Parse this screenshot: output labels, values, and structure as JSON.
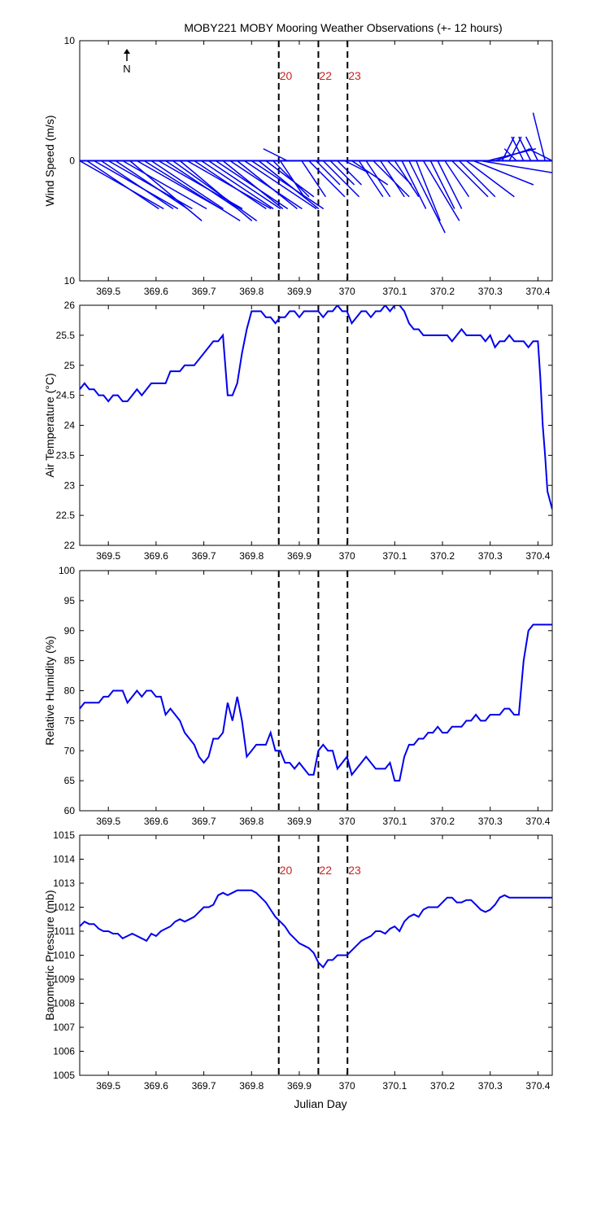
{
  "title": "MOBY221 MOBY Mooring Weather Observations (+- 12 hours)",
  "xlabel": "Julian Day",
  "x_ticks": [
    "369.5",
    "369.6",
    "369.7",
    "369.8",
    "369.9",
    "370",
    "370.1",
    "370.2",
    "370.3",
    "370.4"
  ],
  "xlim": [
    369.44,
    370.43
  ],
  "events": [
    {
      "label": "20",
      "x": 369.857
    },
    {
      "label": "22",
      "x": 369.94
    },
    {
      "label": "23",
      "x": 370.001
    }
  ],
  "north_label": "N",
  "colors": {
    "series": "#0000ee",
    "marker": "#cc2222",
    "axis": "#000000"
  },
  "chart_data": [
    {
      "type": "line",
      "subtype": "wind-vector (stick plot)",
      "ylabel": "Wind Speed (m/s)",
      "ylim": [
        -10,
        10
      ],
      "y_ticks": [
        "10",
        "0",
        "10"
      ],
      "show_event_labels": true,
      "series": [
        {
          "x": [
            369.44,
            369.455,
            369.47,
            369.485,
            369.5,
            369.515,
            369.53,
            369.545,
            369.56,
            369.575,
            369.59,
            369.605,
            369.62,
            369.635,
            369.65,
            369.665,
            369.68,
            369.695,
            369.71,
            369.725,
            369.74,
            369.755,
            369.77,
            369.785,
            369.8,
            369.815,
            369.83,
            369.845,
            369.86,
            369.875,
            369.89,
            369.905,
            369.92,
            369.935,
            369.95,
            369.965,
            369.98,
            369.995,
            370.01,
            370.025,
            370.04,
            370.055,
            370.07,
            370.085,
            370.1,
            370.115,
            370.13,
            370.145,
            370.16,
            370.175,
            370.19,
            370.205,
            370.22,
            370.235,
            370.25,
            370.265,
            370.28,
            370.295,
            370.31,
            370.325,
            370.34,
            370.355,
            370.37,
            370.385,
            370.4,
            370.415,
            370.43
          ],
          "u": [
            7,
            6,
            7,
            6,
            7,
            6,
            7,
            6,
            7,
            8,
            6,
            7,
            6,
            7,
            6,
            7,
            6,
            6,
            6,
            6,
            5,
            6,
            5,
            6,
            6,
            5,
            4,
            3,
            2,
            -2,
            -3,
            2,
            3,
            2,
            3,
            2,
            2,
            2,
            3,
            2,
            2,
            3,
            2,
            2,
            2,
            2,
            3,
            2,
            3,
            2,
            2,
            2,
            3,
            3,
            4,
            5,
            6,
            4,
            3,
            1,
            1,
            -1,
            -1,
            -1,
            -1,
            -1,
            -2
          ],
          "v": [
            -4,
            -4,
            -4,
            -4,
            -4,
            -4,
            -4,
            -5,
            -4,
            -5,
            -4,
            -4,
            -4,
            -5,
            -5,
            -4,
            -4,
            -4,
            -4,
            -4,
            -4,
            -4,
            -4,
            -4,
            -4,
            -4,
            -3,
            -3,
            -3,
            1,
            0,
            -3,
            -3,
            -2,
            -3,
            -2,
            -2,
            -1,
            -2,
            -3,
            -3,
            -3,
            -3,
            -2,
            -3,
            -4,
            -6,
            -5,
            -5,
            -4,
            -4,
            -3,
            -3,
            -3,
            -3,
            -2,
            -1,
            1,
            1,
            2,
            2,
            1,
            2,
            2,
            2,
            4,
            1
          ]
        }
      ]
    },
    {
      "type": "line",
      "ylabel": "Air Temperature (°C)",
      "ylim": [
        22,
        26
      ],
      "y_ticks": [
        "22",
        "22.5",
        "23",
        "23.5",
        "24",
        "24.5",
        "25",
        "25.5",
        "26"
      ],
      "series": [
        {
          "x": [
            369.44,
            369.45,
            369.46,
            369.47,
            369.48,
            369.49,
            369.5,
            369.51,
            369.52,
            369.53,
            369.54,
            369.55,
            369.56,
            369.57,
            369.58,
            369.59,
            369.6,
            369.61,
            369.62,
            369.63,
            369.64,
            369.65,
            369.66,
            369.67,
            369.68,
            369.69,
            369.7,
            369.71,
            369.72,
            369.73,
            369.74,
            369.75,
            369.76,
            369.77,
            369.78,
            369.79,
            369.8,
            369.81,
            369.82,
            369.83,
            369.84,
            369.85,
            369.86,
            369.87,
            369.88,
            369.89,
            369.9,
            369.91,
            369.92,
            369.93,
            369.94,
            369.95,
            369.96,
            369.97,
            369.98,
            369.99,
            370,
            370.01,
            370.02,
            370.03,
            370.04,
            370.05,
            370.06,
            370.07,
            370.08,
            370.09,
            370.1,
            370.11,
            370.12,
            370.13,
            370.14,
            370.15,
            370.16,
            370.17,
            370.18,
            370.19,
            370.2,
            370.21,
            370.22,
            370.23,
            370.24,
            370.25,
            370.26,
            370.27,
            370.28,
            370.29,
            370.3,
            370.31,
            370.32,
            370.33,
            370.34,
            370.35,
            370.36,
            370.37,
            370.38,
            370.39,
            370.4,
            370.405,
            370.41,
            370.415,
            370.42,
            370.43
          ],
          "y": [
            24.6,
            24.7,
            24.6,
            24.6,
            24.5,
            24.5,
            24.4,
            24.5,
            24.5,
            24.4,
            24.4,
            24.5,
            24.6,
            24.5,
            24.6,
            24.7,
            24.7,
            24.7,
            24.7,
            24.9,
            24.9,
            24.9,
            25,
            25,
            25,
            25.1,
            25.2,
            25.3,
            25.4,
            25.4,
            25.5,
            24.5,
            24.5,
            24.7,
            25.2,
            25.6,
            25.9,
            25.9,
            25.9,
            25.8,
            25.8,
            25.7,
            25.8,
            25.8,
            25.9,
            25.9,
            25.8,
            25.9,
            25.9,
            25.9,
            25.9,
            25.8,
            25.9,
            25.9,
            26,
            25.9,
            25.9,
            25.7,
            25.8,
            25.9,
            25.9,
            25.8,
            25.9,
            25.9,
            26,
            25.9,
            26,
            26,
            25.9,
            25.7,
            25.6,
            25.6,
            25.5,
            25.5,
            25.5,
            25.5,
            25.5,
            25.5,
            25.4,
            25.5,
            25.6,
            25.5,
            25.5,
            25.5,
            25.5,
            25.4,
            25.5,
            25.3,
            25.4,
            25.4,
            25.5,
            25.4,
            25.4,
            25.4,
            25.3,
            25.4,
            25.4,
            24.8,
            24,
            23.5,
            22.9,
            22.6
          ]
        }
      ]
    },
    {
      "type": "line",
      "ylabel": "Relative Humidity (%)",
      "ylim": [
        60,
        100
      ],
      "y_ticks": [
        "60",
        "65",
        "70",
        "75",
        "80",
        "85",
        "90",
        "95",
        "100"
      ],
      "series": [
        {
          "x": [
            369.44,
            369.45,
            369.46,
            369.47,
            369.48,
            369.49,
            369.5,
            369.51,
            369.52,
            369.53,
            369.54,
            369.55,
            369.56,
            369.57,
            369.58,
            369.59,
            369.6,
            369.61,
            369.62,
            369.63,
            369.64,
            369.65,
            369.66,
            369.67,
            369.68,
            369.69,
            369.7,
            369.71,
            369.72,
            369.73,
            369.74,
            369.75,
            369.76,
            369.77,
            369.78,
            369.79,
            369.8,
            369.81,
            369.82,
            369.83,
            369.84,
            369.85,
            369.86,
            369.87,
            369.88,
            369.89,
            369.9,
            369.91,
            369.92,
            369.93,
            369.94,
            369.95,
            369.96,
            369.97,
            369.98,
            369.99,
            370,
            370.01,
            370.02,
            370.03,
            370.04,
            370.05,
            370.06,
            370.07,
            370.08,
            370.09,
            370.1,
            370.11,
            370.12,
            370.13,
            370.14,
            370.15,
            370.16,
            370.17,
            370.18,
            370.19,
            370.2,
            370.21,
            370.22,
            370.23,
            370.24,
            370.25,
            370.26,
            370.27,
            370.28,
            370.29,
            370.3,
            370.31,
            370.32,
            370.33,
            370.34,
            370.35,
            370.36,
            370.37,
            370.38,
            370.39,
            370.4,
            370.41,
            370.42,
            370.43
          ],
          "y": [
            77,
            78,
            78,
            78,
            78,
            79,
            79,
            80,
            80,
            80,
            78,
            79,
            80,
            79,
            80,
            80,
            79,
            79,
            76,
            77,
            76,
            75,
            73,
            72,
            71,
            69,
            68,
            69,
            72,
            72,
            73,
            78,
            75,
            79,
            75,
            69,
            70,
            71,
            71,
            71,
            73,
            70,
            70,
            68,
            68,
            67,
            68,
            67,
            66,
            66,
            70,
            71,
            70,
            70,
            67,
            68,
            69,
            66,
            67,
            68,
            69,
            68,
            67,
            67,
            67,
            68,
            65,
            65,
            69,
            71,
            71,
            72,
            72,
            73,
            73,
            74,
            73,
            73,
            74,
            74,
            74,
            75,
            75,
            76,
            75,
            75,
            76,
            76,
            76,
            77,
            77,
            76,
            76,
            85,
            90,
            91,
            91,
            91,
            91,
            91
          ],
          "x_note": ""
        }
      ]
    },
    {
      "type": "line",
      "ylabel": "Barometric Pressure (mb)",
      "ylim": [
        1005,
        1015
      ],
      "y_ticks": [
        "1005",
        "1006",
        "1007",
        "1008",
        "1009",
        "1010",
        "1011",
        "1012",
        "1013",
        "1014",
        "1015"
      ],
      "show_event_labels": true,
      "series": [
        {
          "x": [
            369.44,
            369.45,
            369.46,
            369.47,
            369.48,
            369.49,
            369.5,
            369.51,
            369.52,
            369.53,
            369.54,
            369.55,
            369.56,
            369.57,
            369.58,
            369.59,
            369.6,
            369.61,
            369.62,
            369.63,
            369.64,
            369.65,
            369.66,
            369.67,
            369.68,
            369.69,
            369.7,
            369.71,
            369.72,
            369.73,
            369.74,
            369.75,
            369.76,
            369.77,
            369.78,
            369.79,
            369.8,
            369.81,
            369.82,
            369.83,
            369.84,
            369.85,
            369.86,
            369.87,
            369.88,
            369.89,
            369.9,
            369.91,
            369.92,
            369.93,
            369.94,
            369.95,
            369.96,
            369.97,
            369.98,
            369.99,
            370,
            370.01,
            370.02,
            370.03,
            370.04,
            370.05,
            370.06,
            370.07,
            370.08,
            370.09,
            370.1,
            370.11,
            370.12,
            370.13,
            370.14,
            370.15,
            370.16,
            370.17,
            370.18,
            370.19,
            370.2,
            370.21,
            370.22,
            370.23,
            370.24,
            370.25,
            370.26,
            370.27,
            370.28,
            370.29,
            370.3,
            370.31,
            370.32,
            370.33,
            370.34,
            370.35,
            370.36,
            370.37,
            370.38,
            370.39,
            370.4,
            370.41,
            370.42,
            370.43
          ],
          "y": [
            1011.2,
            1011.4,
            1011.3,
            1011.3,
            1011.1,
            1011,
            1011,
            1010.9,
            1010.9,
            1010.7,
            1010.8,
            1010.9,
            1010.8,
            1010.7,
            1010.6,
            1010.9,
            1010.8,
            1011,
            1011.1,
            1011.2,
            1011.4,
            1011.5,
            1011.4,
            1011.5,
            1011.6,
            1011.8,
            1012,
            1012,
            1012.1,
            1012.5,
            1012.6,
            1012.5,
            1012.6,
            1012.7,
            1012.7,
            1012.7,
            1012.7,
            1012.6,
            1012.4,
            1012.2,
            1011.9,
            1011.6,
            1011.4,
            1011.2,
            1010.9,
            1010.7,
            1010.5,
            1010.4,
            1010.3,
            1010.1,
            1009.7,
            1009.5,
            1009.8,
            1009.8,
            1010,
            1010,
            1010,
            1010.2,
            1010.4,
            1010.6,
            1010.7,
            1010.8,
            1011,
            1011,
            1010.9,
            1011.1,
            1011.2,
            1011,
            1011.4,
            1011.6,
            1011.7,
            1011.6,
            1011.9,
            1012,
            1012,
            1012,
            1012.2,
            1012.4,
            1012.4,
            1012.2,
            1012.2,
            1012.3,
            1012.3,
            1012.1,
            1011.9,
            1011.8,
            1011.9,
            1012.1,
            1012.4,
            1012.5,
            1012.4,
            1012.4,
            1012.4,
            1012.4,
            1012.4,
            1012.4,
            1012.4,
            1012.4,
            1012.4,
            1012.4
          ],
          "x_note": ""
        }
      ]
    }
  ]
}
